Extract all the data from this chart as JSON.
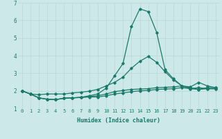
{
  "xlabel": "Humidex (Indice chaleur)",
  "bg_color": "#cce8e8",
  "grid_color": "#b8d8d8",
  "line_color": "#1a7a6a",
  "xlim": [
    -0.5,
    23.5
  ],
  "ylim": [
    1,
    7
  ],
  "yticks": [
    1,
    2,
    3,
    4,
    5,
    6,
    7
  ],
  "xticks": [
    0,
    1,
    2,
    3,
    4,
    5,
    6,
    7,
    8,
    9,
    10,
    11,
    12,
    13,
    14,
    15,
    16,
    17,
    18,
    19,
    20,
    21,
    22,
    23
  ],
  "series": [
    [
      2.0,
      1.82,
      1.6,
      1.52,
      1.5,
      1.58,
      1.6,
      1.62,
      1.65,
      1.65,
      1.72,
      1.82,
      1.88,
      1.95,
      2.0,
      2.02,
      2.08,
      2.1,
      2.12,
      2.18,
      2.12,
      2.18,
      2.12,
      2.12
    ],
    [
      2.0,
      1.82,
      1.6,
      1.52,
      1.5,
      1.58,
      1.6,
      1.63,
      1.68,
      1.72,
      1.82,
      1.95,
      2.02,
      2.08,
      2.1,
      2.12,
      2.18,
      2.2,
      2.22,
      2.28,
      2.22,
      2.48,
      2.28,
      2.18
    ],
    [
      2.0,
      1.82,
      1.6,
      1.52,
      1.5,
      1.58,
      1.6,
      1.63,
      1.72,
      1.82,
      2.15,
      2.85,
      3.55,
      5.65,
      6.65,
      6.5,
      5.32,
      3.2,
      2.68,
      2.28,
      2.18,
      2.08,
      2.12,
      2.12
    ],
    [
      2.0,
      1.82,
      1.78,
      1.82,
      1.82,
      1.82,
      1.88,
      1.92,
      1.98,
      2.08,
      2.28,
      2.48,
      2.78,
      3.28,
      3.68,
      3.95,
      3.62,
      3.08,
      2.62,
      2.28,
      2.12,
      2.08,
      2.18,
      2.18
    ]
  ]
}
